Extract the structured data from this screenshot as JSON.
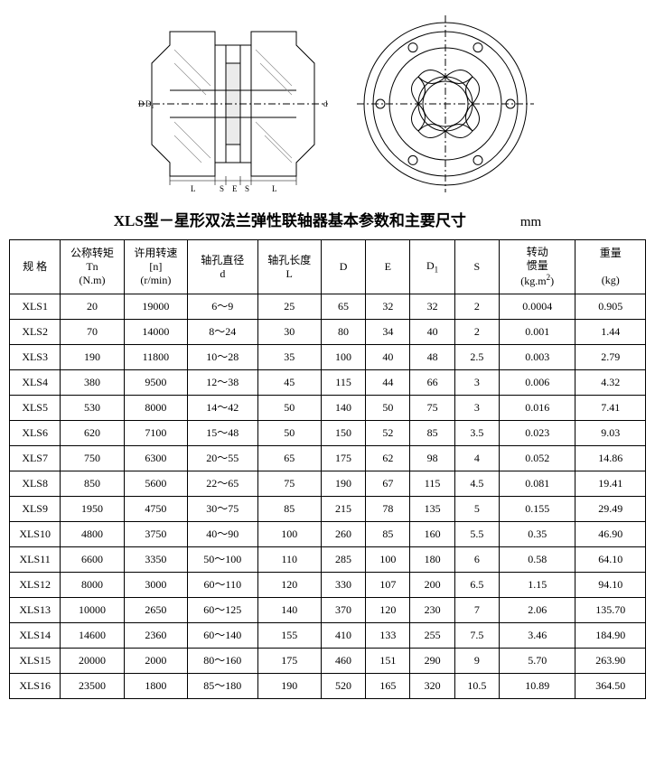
{
  "title": "XLS型－星形双法兰弹性联轴器基本参数和主要尺寸",
  "unit": "mm",
  "diagram": {
    "section": {
      "outline": "#000000",
      "hatch": "#888888",
      "dims": [
        "D",
        "D₁",
        "d",
        "L",
        "S",
        "E",
        "S",
        "L"
      ]
    },
    "flange": {
      "outline": "#000000",
      "bolt_holes": 6,
      "ribs": 8
    }
  },
  "columns": [
    {
      "key": "spec",
      "label": "规 格"
    },
    {
      "key": "Tn",
      "label": "公称转矩",
      "sub": "Tn",
      "unit": "(N.m)"
    },
    {
      "key": "n",
      "label": "许用转速",
      "sub": "[n]",
      "unit": "(r/min)"
    },
    {
      "key": "d",
      "label": "轴孔直径",
      "sub": "d"
    },
    {
      "key": "L",
      "label": "轴孔长度",
      "sub": "L"
    },
    {
      "key": "D",
      "label": "D"
    },
    {
      "key": "E",
      "label": "E"
    },
    {
      "key": "D1",
      "label_html": "D<sub>1</sub>"
    },
    {
      "key": "S",
      "label": "S"
    },
    {
      "key": "inertia",
      "label": "转动",
      "sub": "惯量",
      "unit_html": "(kg.m<sup>2</sup>)"
    },
    {
      "key": "weight",
      "label": "重量",
      "unit": "(kg)"
    }
  ],
  "rows": [
    {
      "spec": "XLS1",
      "Tn": "20",
      "n": "19000",
      "d": "6～9",
      "L": "25",
      "D": "65",
      "E": "32",
      "D1": "32",
      "S": "2",
      "inertia": "0.0004",
      "weight": "0.905"
    },
    {
      "spec": "XLS2",
      "Tn": "70",
      "n": "14000",
      "d": "8～24",
      "L": "30",
      "D": "80",
      "E": "34",
      "D1": "40",
      "S": "2",
      "inertia": "0.001",
      "weight": "1.44"
    },
    {
      "spec": "XLS3",
      "Tn": "190",
      "n": "11800",
      "d": "10～28",
      "L": "35",
      "D": "100",
      "E": "40",
      "D1": "48",
      "S": "2.5",
      "inertia": "0.003",
      "weight": "2.79"
    },
    {
      "spec": "XLS4",
      "Tn": "380",
      "n": "9500",
      "d": "12～38",
      "L": "45",
      "D": "115",
      "E": "44",
      "D1": "66",
      "S": "3",
      "inertia": "0.006",
      "weight": "4.32"
    },
    {
      "spec": "XLS5",
      "Tn": "530",
      "n": "8000",
      "d": "14～42",
      "L": "50",
      "D": "140",
      "E": "50",
      "D1": "75",
      "S": "3",
      "inertia": "0.016",
      "weight": "7.41"
    },
    {
      "spec": "XLS6",
      "Tn": "620",
      "n": "7100",
      "d": "15～48",
      "L": "50",
      "D": "150",
      "E": "52",
      "D1": "85",
      "S": "3.5",
      "inertia": "0.023",
      "weight": "9.03"
    },
    {
      "spec": "XLS7",
      "Tn": "750",
      "n": "6300",
      "d": "20～55",
      "L": "65",
      "D": "175",
      "E": "62",
      "D1": "98",
      "S": "4",
      "inertia": "0.052",
      "weight": "14.86"
    },
    {
      "spec": "XLS8",
      "Tn": "850",
      "n": "5600",
      "d": "22～65",
      "L": "75",
      "D": "190",
      "E": "67",
      "D1": "115",
      "S": "4.5",
      "inertia": "0.081",
      "weight": "19.41"
    },
    {
      "spec": "XLS9",
      "Tn": "1950",
      "n": "4750",
      "d": "30～75",
      "L": "85",
      "D": "215",
      "E": "78",
      "D1": "135",
      "S": "5",
      "inertia": "0.155",
      "weight": "29.49"
    },
    {
      "spec": "XLS10",
      "Tn": "4800",
      "n": "3750",
      "d": "40～90",
      "L": "100",
      "D": "260",
      "E": "85",
      "D1": "160",
      "S": "5.5",
      "inertia": "0.35",
      "weight": "46.90"
    },
    {
      "spec": "XLS11",
      "Tn": "6600",
      "n": "3350",
      "d": "50～100",
      "L": "110",
      "D": "285",
      "E": "100",
      "D1": "180",
      "S": "6",
      "inertia": "0.58",
      "weight": "64.10"
    },
    {
      "spec": "XLS12",
      "Tn": "8000",
      "n": "3000",
      "d": "60～110",
      "L": "120",
      "D": "330",
      "E": "107",
      "D1": "200",
      "S": "6.5",
      "inertia": "1.15",
      "weight": "94.10"
    },
    {
      "spec": "XLS13",
      "Tn": "10000",
      "n": "2650",
      "d": "60～125",
      "L": "140",
      "D": "370",
      "E": "120",
      "D1": "230",
      "S": "7",
      "inertia": "2.06",
      "weight": "135.70"
    },
    {
      "spec": "XLS14",
      "Tn": "14600",
      "n": "2360",
      "d": "60～140",
      "L": "155",
      "D": "410",
      "E": "133",
      "D1": "255",
      "S": "7.5",
      "inertia": "3.46",
      "weight": "184.90"
    },
    {
      "spec": "XLS15",
      "Tn": "20000",
      "n": "2000",
      "d": "80～160",
      "L": "175",
      "D": "460",
      "E": "151",
      "D1": "290",
      "S": "9",
      "inertia": "5.70",
      "weight": "263.90"
    },
    {
      "spec": "XLS16",
      "Tn": "23500",
      "n": "1800",
      "d": "85～180",
      "L": "190",
      "D": "520",
      "E": "165",
      "D1": "320",
      "S": "10.5",
      "inertia": "10.89",
      "weight": "364.50"
    }
  ]
}
